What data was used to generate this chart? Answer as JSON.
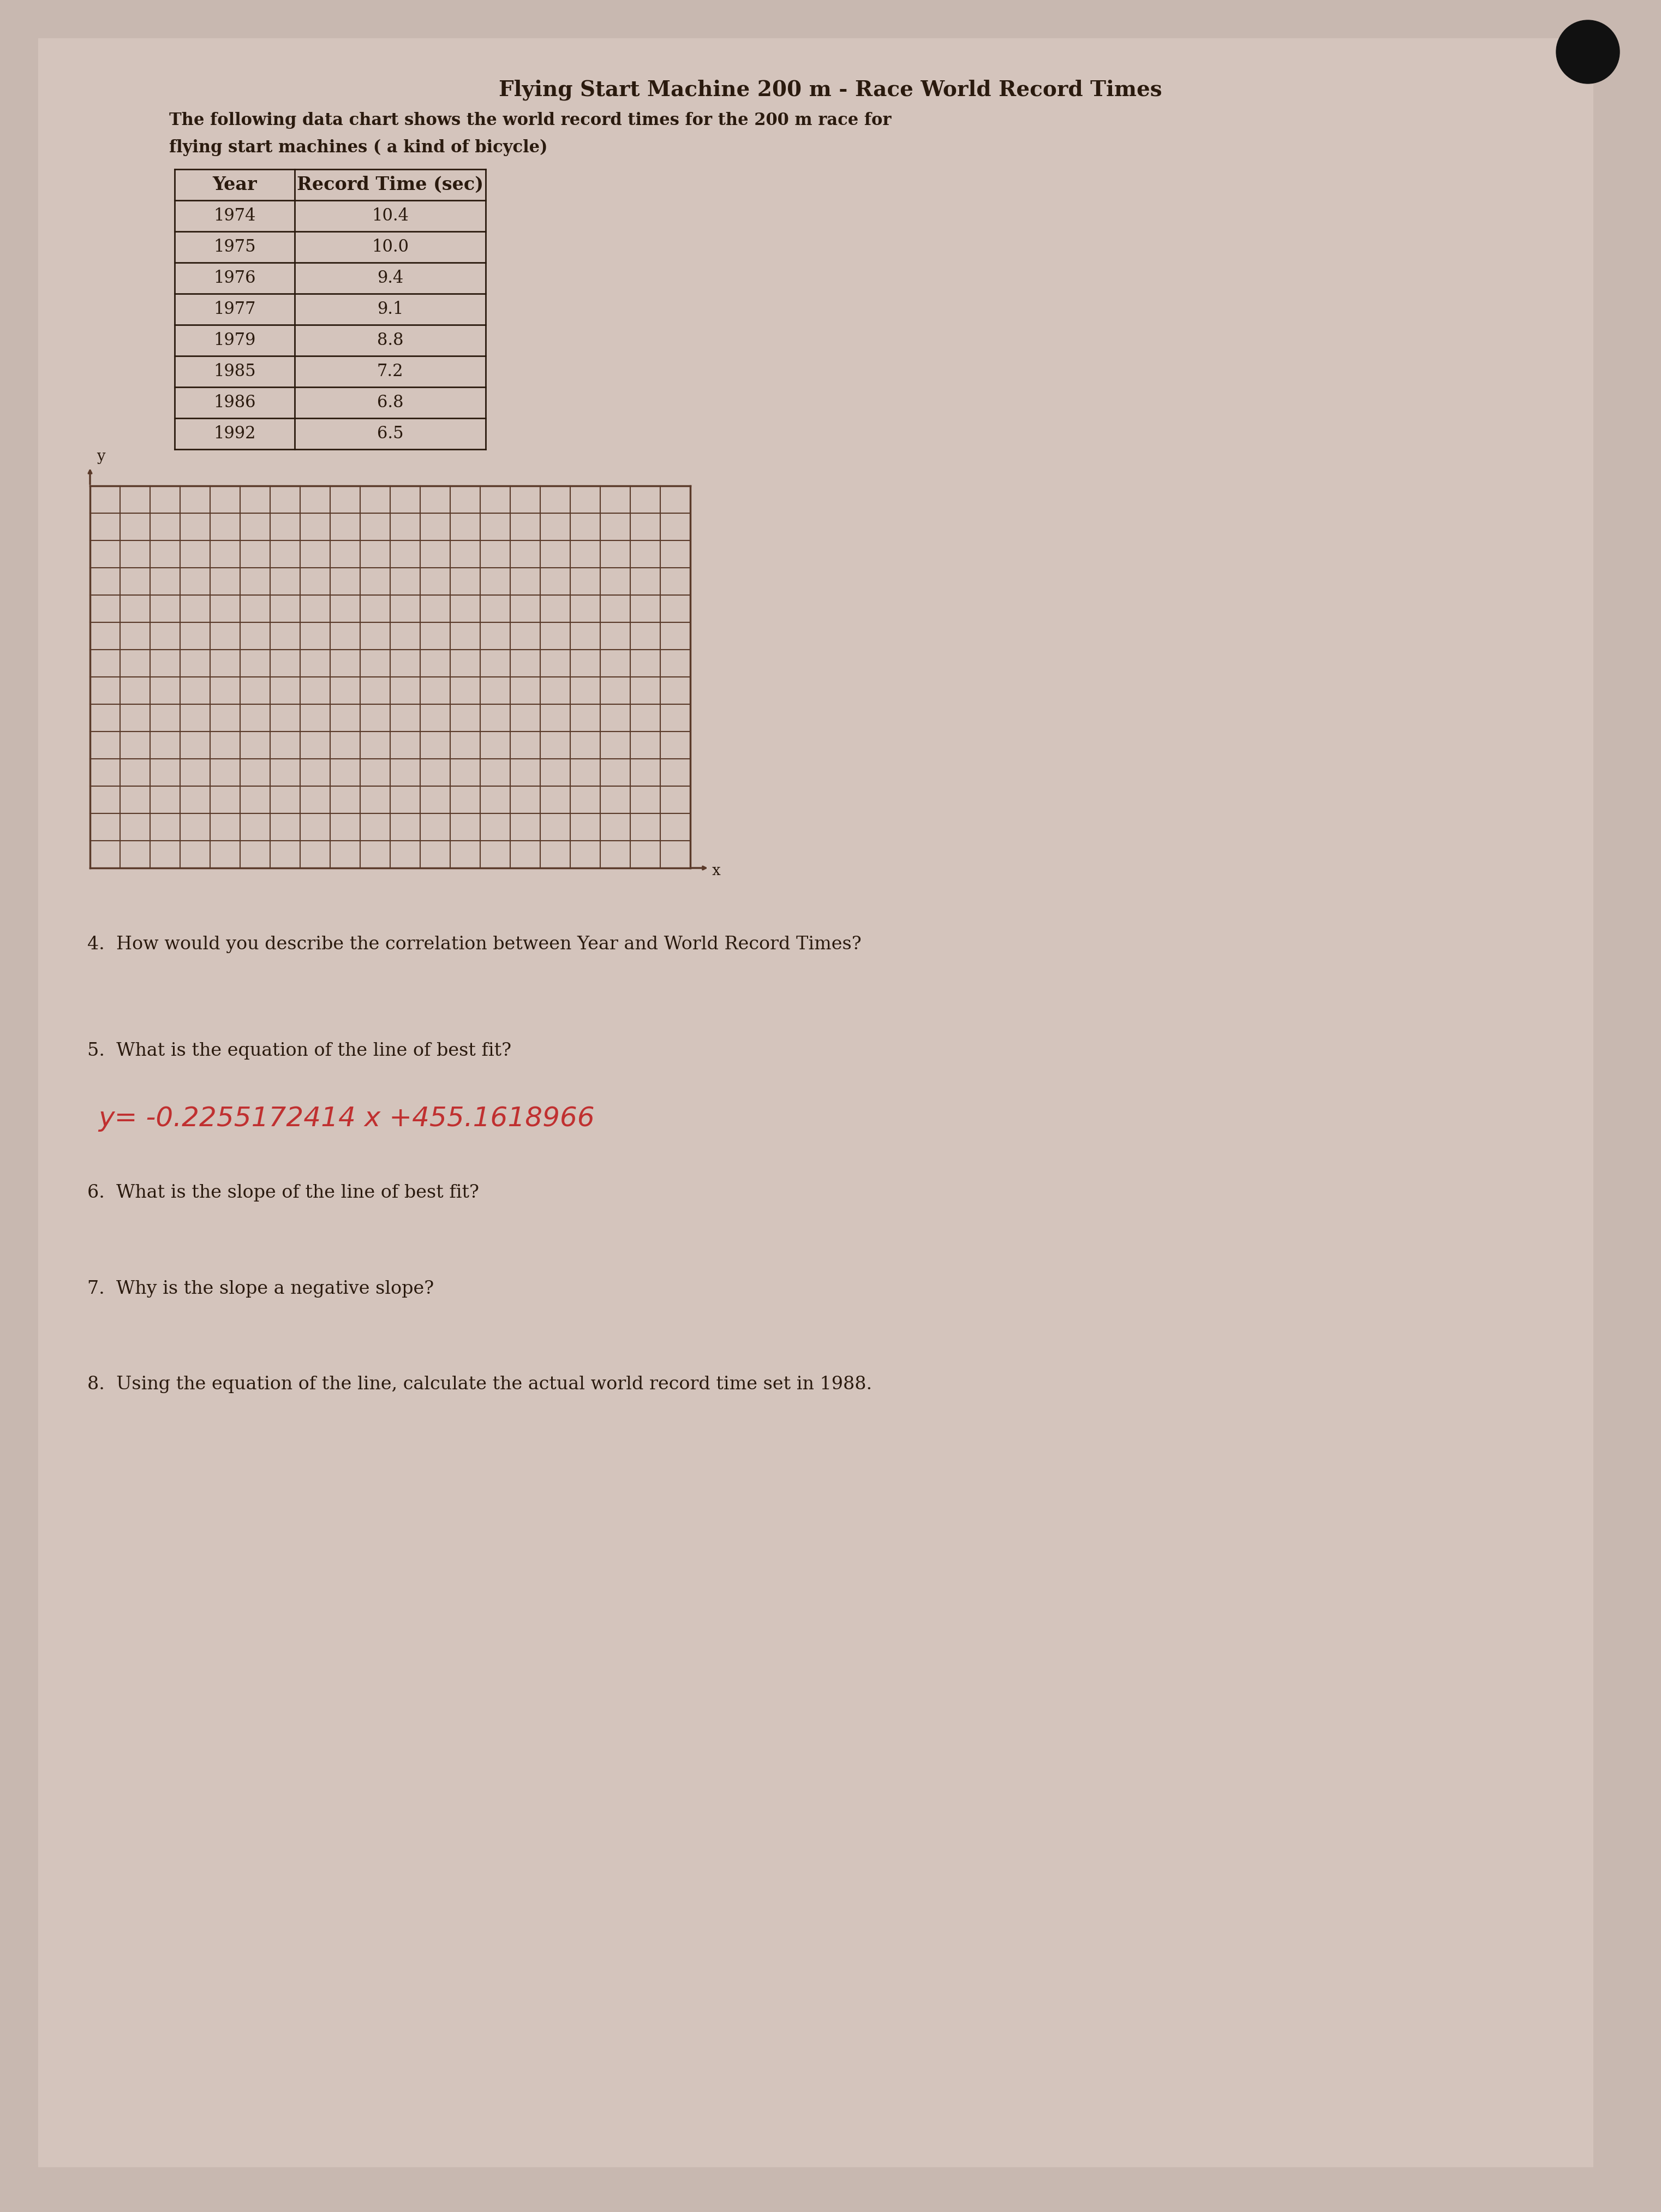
{
  "title": "Flying Start Machine 200 m - Race World Record Times",
  "subtitle1": "The following data chart shows the world record times for the 200 m race for",
  "subtitle2": "flying start machines ( a kind of bicycle)",
  "table_header_col1": "Year",
  "table_header_col2": "Record Time (sec)",
  "table_data": [
    [
      1974,
      10.4
    ],
    [
      1975,
      10.0
    ],
    [
      1976,
      9.4
    ],
    [
      1977,
      9.1
    ],
    [
      1979,
      8.8
    ],
    [
      1985,
      7.2
    ],
    [
      1986,
      6.8
    ],
    [
      1992,
      6.5
    ]
  ],
  "question4": "4.  How would you describe the correlation between Year and World Record Times?",
  "question5": "5.  What is the equation of the line of best fit?",
  "equation_handwritten": "y= -0.2255172414 x +455.1618966",
  "question6": "6.  What is the slope of the line of best fit?",
  "question7": "7.  Why is the slope a negative slope?",
  "question8": "8.  Using the equation of the line, calculate the actual world record time set in 1988.",
  "bg_color": "#c8b8b0",
  "paper_color": "#d4c4bc",
  "text_color": "#2a1a0e",
  "grid_color": "#5a3a2a",
  "handwritten_color": "#c03030",
  "grid_rows": 14,
  "grid_cols": 20
}
